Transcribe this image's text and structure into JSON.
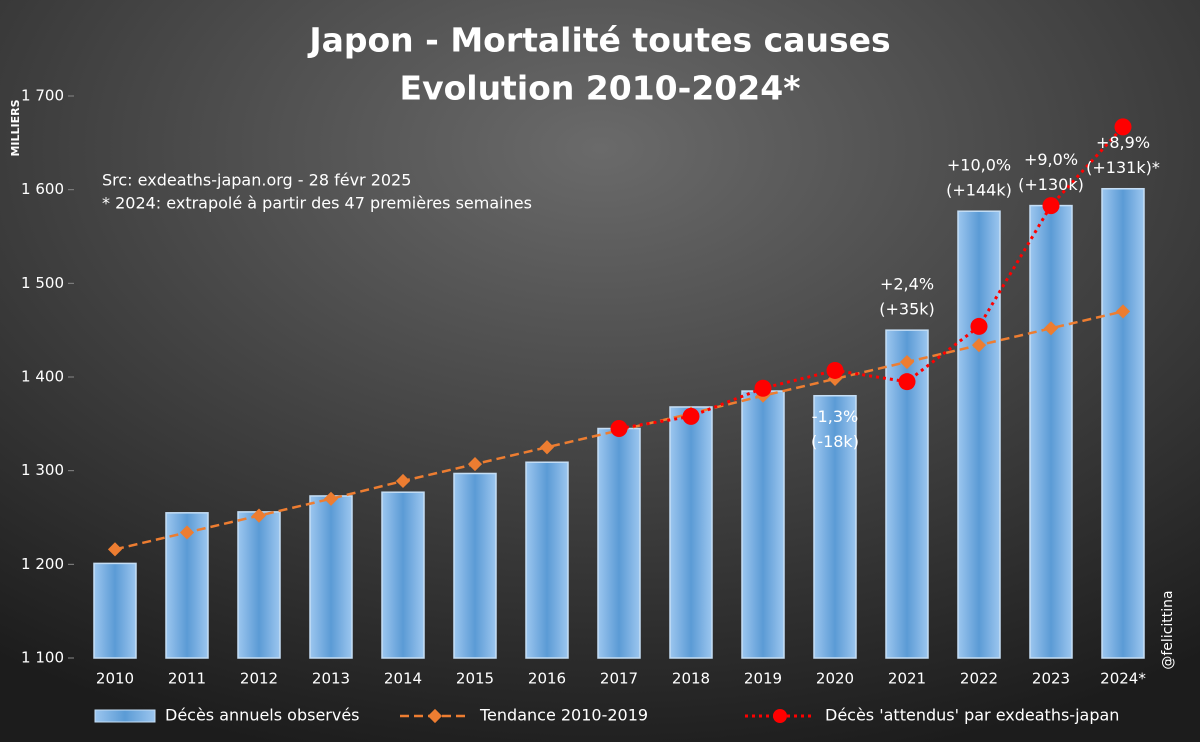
{
  "chart_data": {
    "type": "bar",
    "title": "Japon - Mortalité toutes causes",
    "subtitle": "Evolution 2010-2024*",
    "y_axis_label": "MILLIERS",
    "notes": [
      "Src: exdeaths-japan.org - 28 févr 2025",
      "* 2024: extrapolé à partir des 47 premières semaines"
    ],
    "credit": "@felicittina",
    "categories": [
      "2010",
      "2011",
      "2012",
      "2013",
      "2014",
      "2015",
      "2016",
      "2017",
      "2018",
      "2019",
      "2020",
      "2021",
      "2022",
      "2023",
      "2024*"
    ],
    "series": [
      {
        "name": "Décès annuels observés",
        "type": "bar",
        "color": "#5b9bd5",
        "values": [
          1201,
          1255,
          1256,
          1273,
          1277,
          1297,
          1309,
          1345,
          1368,
          1385,
          1380,
          1450,
          1577,
          1583,
          1601
        ]
      },
      {
        "name": "Tendance 2010-2019",
        "type": "line",
        "color": "#ed7d31",
        "values": [
          1216,
          1234,
          1252,
          1270,
          1289,
          1307,
          1325,
          1343,
          1361,
          1380,
          1398,
          1416,
          1434,
          1452,
          1470
        ]
      },
      {
        "name": "Décès 'attendus' par exdeaths-japan",
        "type": "line",
        "color": "#ff0000",
        "values": [
          null,
          null,
          null,
          null,
          null,
          null,
          null,
          1345,
          1358,
          1388,
          1407,
          1395,
          1454,
          1583,
          1667
        ]
      }
    ],
    "annotations": [
      {
        "category": "2020",
        "lines": [
          "-1,3%",
          "(-18k)"
        ]
      },
      {
        "category": "2021",
        "lines": [
          "+2,4%",
          "(+35k)"
        ]
      },
      {
        "category": "2022",
        "lines": [
          "+10,0%",
          "(+144k)"
        ]
      },
      {
        "category": "2023",
        "lines": [
          "+9,0%",
          "(+130k)"
        ]
      },
      {
        "category": "2024*",
        "lines": [
          "+8,9%",
          "(+131k)*"
        ]
      }
    ],
    "ylim": [
      1100,
      1700
    ],
    "yticks": [
      {
        "value": 1100,
        "label": "1 100"
      },
      {
        "value": 1200,
        "label": "1 200"
      },
      {
        "value": 1300,
        "label": "1 300"
      },
      {
        "value": 1400,
        "label": "1 400"
      },
      {
        "value": 1500,
        "label": "1 500"
      },
      {
        "value": 1600,
        "label": "1 600"
      },
      {
        "value": 1700,
        "label": "1 700"
      }
    ],
    "grid": false
  }
}
